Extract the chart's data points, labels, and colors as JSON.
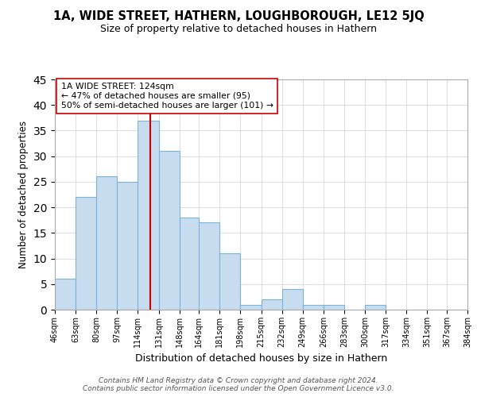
{
  "title": "1A, WIDE STREET, HATHERN, LOUGHBOROUGH, LE12 5JQ",
  "subtitle": "Size of property relative to detached houses in Hathern",
  "xlabel": "Distribution of detached houses by size in Hathern",
  "ylabel": "Number of detached properties",
  "bin_labels": [
    "46sqm",
    "63sqm",
    "80sqm",
    "97sqm",
    "114sqm",
    "131sqm",
    "148sqm",
    "164sqm",
    "181sqm",
    "198sqm",
    "215sqm",
    "232sqm",
    "249sqm",
    "266sqm",
    "283sqm",
    "300sqm",
    "317sqm",
    "334sqm",
    "351sqm",
    "367sqm",
    "384sqm"
  ],
  "bin_edges": [
    46,
    63,
    80,
    97,
    114,
    131,
    148,
    164,
    181,
    198,
    215,
    232,
    249,
    266,
    283,
    300,
    317,
    334,
    351,
    367,
    384
  ],
  "counts": [
    6,
    22,
    26,
    25,
    37,
    31,
    18,
    17,
    11,
    1,
    2,
    4,
    1,
    1,
    0,
    1,
    0,
    0,
    0,
    0,
    0
  ],
  "bar_color": "#c8dcf0",
  "bar_edge_color": "#7ab4dc",
  "vline_x": 124,
  "vline_color": "#cc0000",
  "annotation_lines": [
    "1A WIDE STREET: 124sqm",
    "← 47% of detached houses are smaller (95)",
    "50% of semi-detached houses are larger (101) →"
  ],
  "ylim": [
    0,
    45
  ],
  "yticks": [
    0,
    5,
    10,
    15,
    20,
    25,
    30,
    35,
    40,
    45
  ],
  "footer_line1": "Contains HM Land Registry data © Crown copyright and database right 2024.",
  "footer_line2": "Contains public sector information licensed under the Open Government Licence v3.0."
}
